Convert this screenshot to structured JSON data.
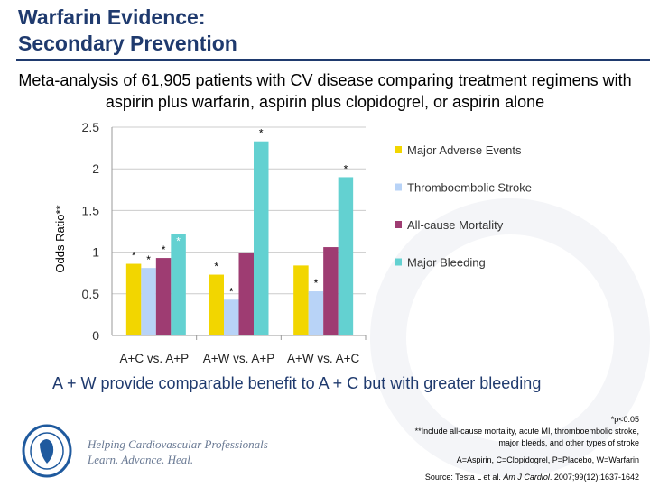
{
  "title_line1": "Warfarin Evidence:",
  "title_line2": "Secondary Prevention",
  "subtitle": "Meta-analysis of 61,905 patients with CV disease comparing treatment regimens with aspirin plus warfarin, aspirin plus clopidogrel, or aspirin alone",
  "conclusion": "A + W provide comparable benefit to A + C but with greater bleeding",
  "notes": {
    "sig": "*p<0.05",
    "footnote": "**Include all-cause mortality, acute MI, thromboembolic stroke, major bleeds, and other types of stroke",
    "abbrev": "A=Aspirin, C=Clopidogrel, P=Placebo, W=Warfarin",
    "source_prefix": "Source: Testa L et al. ",
    "source_journal": "Am J Cardiol",
    "source_suffix": ". 2007;99(12):1637-1642"
  },
  "logo": {
    "tagline1": "Helping Cardiovascular Professionals",
    "tagline2": "Learn. Advance. Heal.",
    "seal_text": "AMERICAN COLLEGE OF CARDIOLOGY"
  },
  "chart_data": {
    "type": "bar",
    "ylabel": "Odds Ratio**",
    "xlabel": "",
    "ylim": [
      0,
      2.5
    ],
    "yticks": [
      "0",
      "0.5",
      "1",
      "1.5",
      "2",
      "2.5"
    ],
    "grid": true,
    "legend_position": "right",
    "categories": [
      "A+C vs. A+P",
      "A+W vs. A+P",
      "A+W vs. A+C"
    ],
    "series": [
      {
        "name": "Major Adverse Events",
        "color": "#f2d600",
        "values": [
          0.86,
          0.73,
          0.84
        ],
        "significant": [
          true,
          true,
          false
        ]
      },
      {
        "name": "Thromboembolic Stroke",
        "color": "#b8d3f7",
        "values": [
          0.81,
          0.43,
          0.53
        ],
        "significant": [
          true,
          true,
          true
        ]
      },
      {
        "name": "All-cause Mortality",
        "color": "#9e3c72",
        "values": [
          0.93,
          0.99,
          1.06
        ],
        "significant": [
          true,
          false,
          false
        ]
      },
      {
        "name": "Major Bleeding",
        "color": "#63d1d1",
        "values": [
          1.22,
          2.33,
          1.9
        ],
        "significant": [
          true,
          true,
          true
        ]
      }
    ]
  }
}
